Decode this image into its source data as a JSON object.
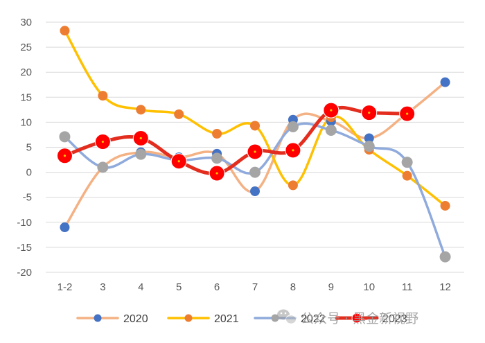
{
  "chart_data": {
    "type": "line",
    "title": "",
    "xlabel": "",
    "ylabel": "",
    "categories": [
      "1-2",
      "3",
      "4",
      "5",
      "6",
      "7",
      "8",
      "9",
      "10",
      "11",
      "12"
    ],
    "ylim": [
      -20,
      30
    ],
    "yticks": [
      30,
      25,
      20,
      15,
      10,
      5,
      0,
      -5,
      -10,
      -15,
      -20
    ],
    "grid": true,
    "legend_position": "bottom",
    "series": [
      {
        "name": "2020",
        "line_color": "#F4B183",
        "marker_color": "#4472C4",
        "values": [
          -11,
          1,
          4,
          3,
          3.7,
          -3.8,
          10.5,
          10.2,
          6.8,
          11.8,
          18
        ]
      },
      {
        "name": "2021",
        "line_color": "#FFC000",
        "marker_color": "#ED7D31",
        "values": [
          28.3,
          15.3,
          12.5,
          11.6,
          7.7,
          9.3,
          -2.6,
          11,
          4.5,
          -0.7,
          -6.7
        ]
      },
      {
        "name": "2022",
        "line_color": "#8FAADC",
        "marker_color": "#A5A5A5",
        "values": [
          7.1,
          1,
          3.6,
          2.4,
          2.8,
          0,
          9.1,
          8.4,
          5.2,
          2,
          -16.9
        ]
      },
      {
        "name": "2023",
        "line_color": "#E32D1E",
        "marker_color": "#FF0000",
        "values": [
          3.3,
          6.1,
          6.8,
          2.2,
          -0.2,
          4.1,
          4.4,
          12.4,
          11.9,
          11.7,
          null
        ]
      }
    ]
  },
  "watermark": {
    "text": "公众号 · 黑金新视野",
    "icon": "wechat-icon"
  }
}
